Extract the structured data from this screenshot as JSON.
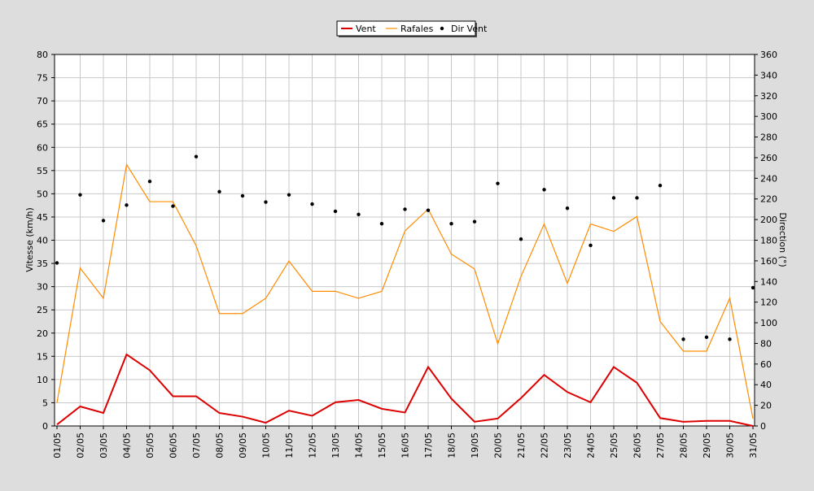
{
  "chart_data": {
    "type": "line",
    "categories": [
      "01/05",
      "02/05",
      "03/05",
      "04/05",
      "05/05",
      "06/05",
      "07/05",
      "08/05",
      "09/05",
      "10/05",
      "11/05",
      "12/05",
      "13/05",
      "14/05",
      "15/05",
      "16/05",
      "17/05",
      "18/05",
      "19/05",
      "20/05",
      "21/05",
      "22/05",
      "23/05",
      "24/05",
      "25/05",
      "26/05",
      "27/05",
      "28/05",
      "29/05",
      "30/05",
      "31/05"
    ],
    "ylabel": "Vitesse (km/h)",
    "y2label": "Direction (°)",
    "ylim": [
      0,
      80
    ],
    "y2lim": [
      0,
      360
    ],
    "y_ticks": [
      "0",
      "5",
      "10",
      "15",
      "20",
      "25",
      "30",
      "35",
      "40",
      "45",
      "50",
      "55",
      "60",
      "65",
      "70",
      "75",
      "80"
    ],
    "y2_ticks": [
      "0",
      "20",
      "40",
      "60",
      "80",
      "100",
      "120",
      "140",
      "160",
      "180",
      "200",
      "220",
      "240",
      "260",
      "280",
      "300",
      "320",
      "340",
      "360"
    ],
    "grid": true,
    "legend_position": "top-center",
    "series": [
      {
        "name": "Vent",
        "type": "line",
        "axis": "left",
        "color": "#dd0000",
        "values": [
          0.3,
          4.2,
          2.8,
          15.4,
          12.0,
          6.4,
          6.4,
          2.8,
          2.0,
          0.7,
          3.3,
          2.2,
          5.1,
          5.6,
          3.7,
          2.9,
          12.7,
          5.9,
          0.9,
          1.6,
          6.0,
          11.0,
          7.3,
          5.1,
          12.7,
          9.3,
          1.7,
          0.9,
          1.1,
          1.1,
          0.0
        ]
      },
      {
        "name": "Rafales",
        "type": "line",
        "axis": "left",
        "color": "#ff8c00",
        "values": [
          5.0,
          34.0,
          27.5,
          56.3,
          48.3,
          48.3,
          38.8,
          24.2,
          24.2,
          27.5,
          35.5,
          29.0,
          29.0,
          27.5,
          29.0,
          42.0,
          46.7,
          37.0,
          33.8,
          17.7,
          32.2,
          43.5,
          30.7,
          43.5,
          41.9,
          45.1,
          22.5,
          16.1,
          16.1,
          27.5,
          1.6
        ]
      },
      {
        "name": "Dir Vent",
        "type": "scatter",
        "axis": "right",
        "color": "#000000",
        "values": [
          158,
          224,
          199,
          214,
          237,
          213,
          261,
          227,
          223,
          217,
          224,
          215,
          208,
          205,
          196,
          210,
          209,
          196,
          198,
          235,
          181,
          229,
          211,
          175,
          221,
          221,
          233,
          84,
          86,
          84,
          134
        ]
      }
    ]
  }
}
